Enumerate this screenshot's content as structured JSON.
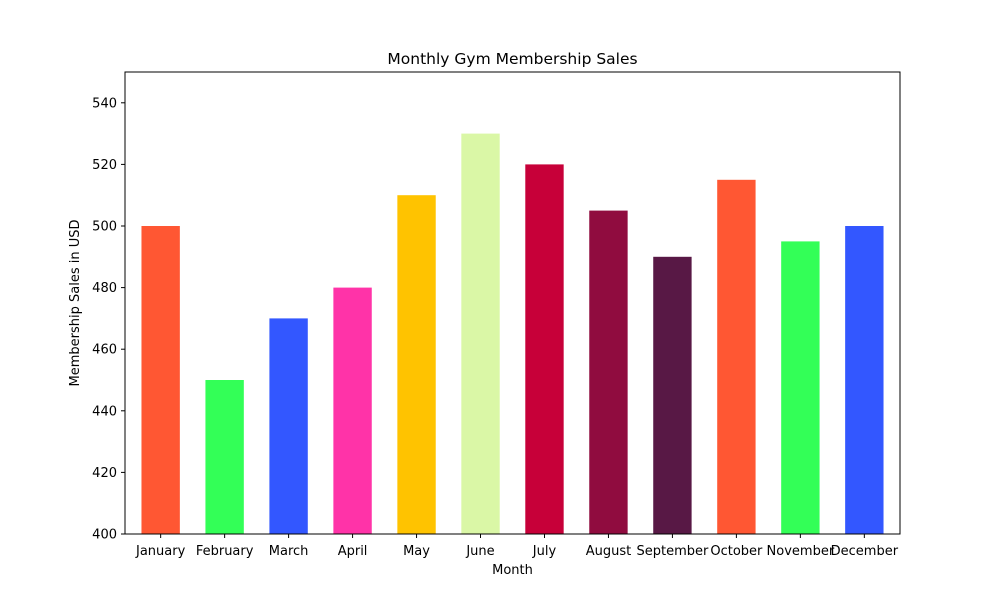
{
  "chart_data": {
    "type": "bar",
    "title": "Monthly Gym Membership Sales",
    "xlabel": "Month",
    "ylabel": "Membership Sales in USD",
    "categories": [
      "January",
      "February",
      "March",
      "April",
      "May",
      "June",
      "July",
      "August",
      "September",
      "October",
      "November",
      "December"
    ],
    "values": [
      500,
      450,
      470,
      480,
      510,
      530,
      520,
      505,
      490,
      515,
      495,
      500
    ],
    "colors": [
      "#FF5733",
      "#33FF57",
      "#3357FF",
      "#FF33A8",
      "#FFC300",
      "#DAF7A6",
      "#C70039",
      "#900C3F",
      "#581845",
      "#FF5733",
      "#33FF57",
      "#3357FF"
    ],
    "ylim": [
      400,
      550
    ],
    "yticks": [
      400,
      420,
      440,
      460,
      480,
      500,
      520,
      540
    ],
    "grid": false,
    "legend": "none"
  }
}
